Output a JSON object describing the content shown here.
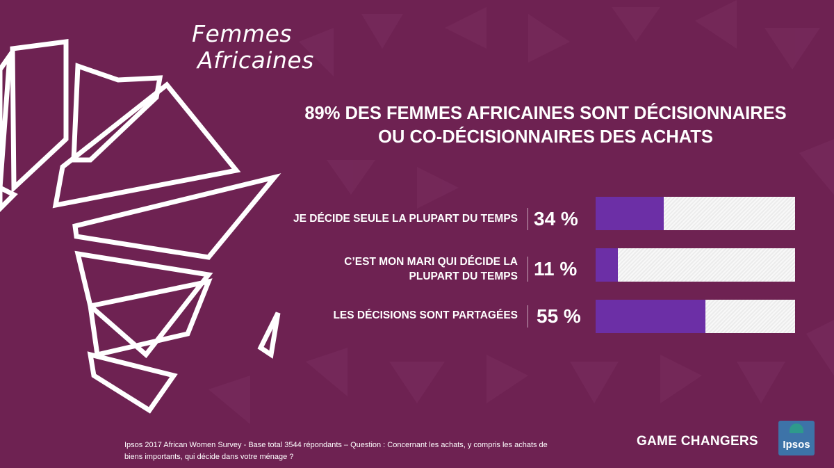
{
  "brand": {
    "line1": "Femmes",
    "line2": "Africaines"
  },
  "chart_data": {
    "type": "bar",
    "orientation": "horizontal",
    "stacked_remainder": true,
    "title_line1": "89% DES FEMMES AFRICAINES SONT DÉCISIONNAIRES",
    "title_line2": "OU CO-DÉCISIONNAIRES DES ACHATS",
    "categories": [
      [
        "JE DÉCIDE SEULE LA PLUPART DU TEMPS"
      ],
      [
        "C’EST MON MARI QUI DÉCIDE LA",
        "PLUPART DU TEMPS"
      ],
      [
        "LES DÉCISIONS SONT PARTAGÉES"
      ]
    ],
    "values": [
      34,
      11,
      55
    ],
    "value_labels": [
      "34 %",
      "11 %",
      "55 %"
    ],
    "xlim": [
      0,
      100
    ],
    "colors": {
      "fill": "#6c2fa6",
      "remainder": "#f2f2f2",
      "background": "#6e2252"
    }
  },
  "footnote": {
    "line1": "Ipsos 2017 African Women Survey - Base total 3544 répondants – Question : Concernant les achats, y compris les achats de",
    "line2": "biens importants, qui décide dans votre ménage ?"
  },
  "tagline": "GAME CHANGERS",
  "logo": {
    "text": "Ipsos",
    "colors": [
      "#3d73a8",
      "#2e9a8c"
    ]
  }
}
